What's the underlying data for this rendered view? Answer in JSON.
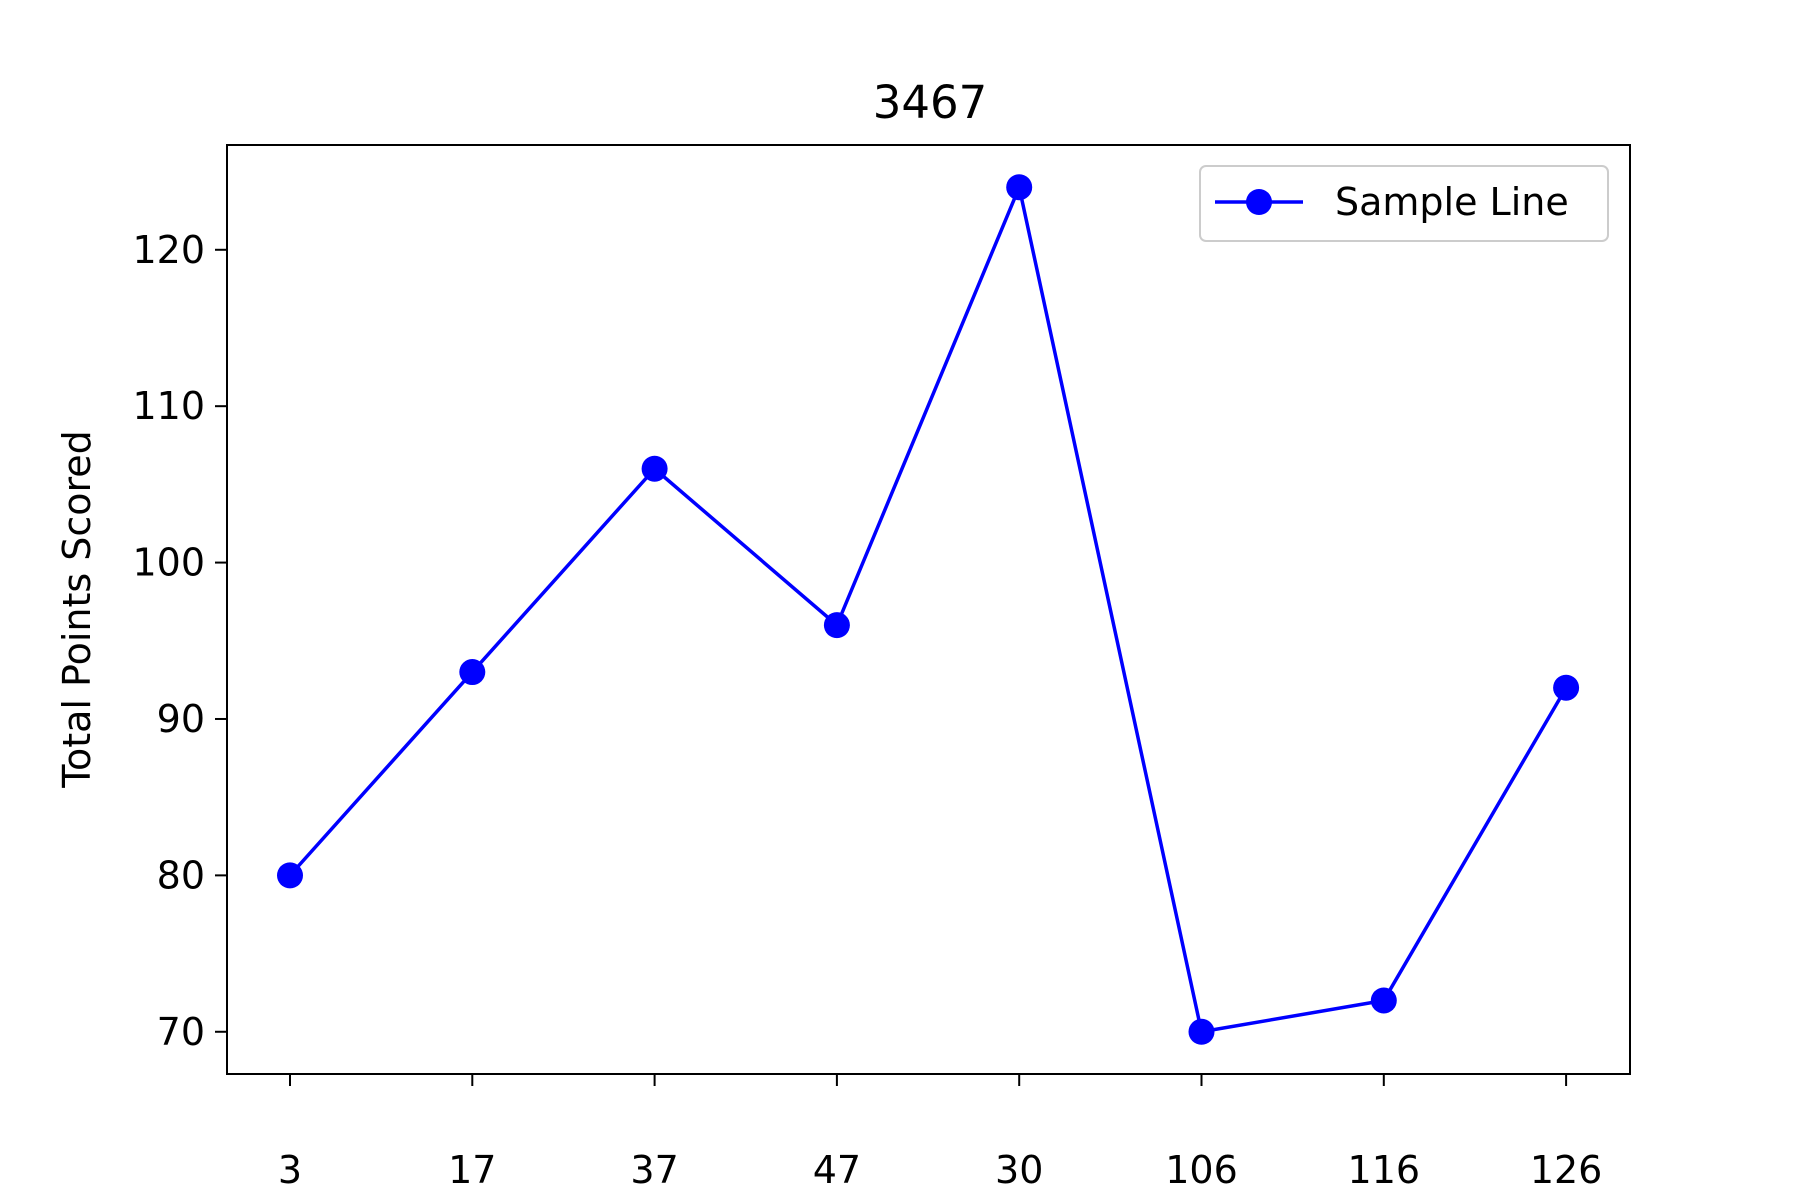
{
  "chart_data": {
    "type": "line",
    "title": "3467",
    "xlabel": "",
    "ylabel": "Total Points Scored",
    "categories": [
      "3",
      "17",
      "37",
      "47",
      "30",
      "106",
      "116",
      "126"
    ],
    "series": [
      {
        "name": "Sample Line",
        "values": [
          80,
          93,
          106,
          96,
          124,
          70,
          72,
          92
        ],
        "color": "#0000ff",
        "marker": "circle"
      }
    ],
    "ylim": [
      67.3,
      126.7
    ],
    "yticks": [
      70,
      80,
      90,
      100,
      110,
      120
    ],
    "grid": false,
    "legend_position": "top-right"
  }
}
